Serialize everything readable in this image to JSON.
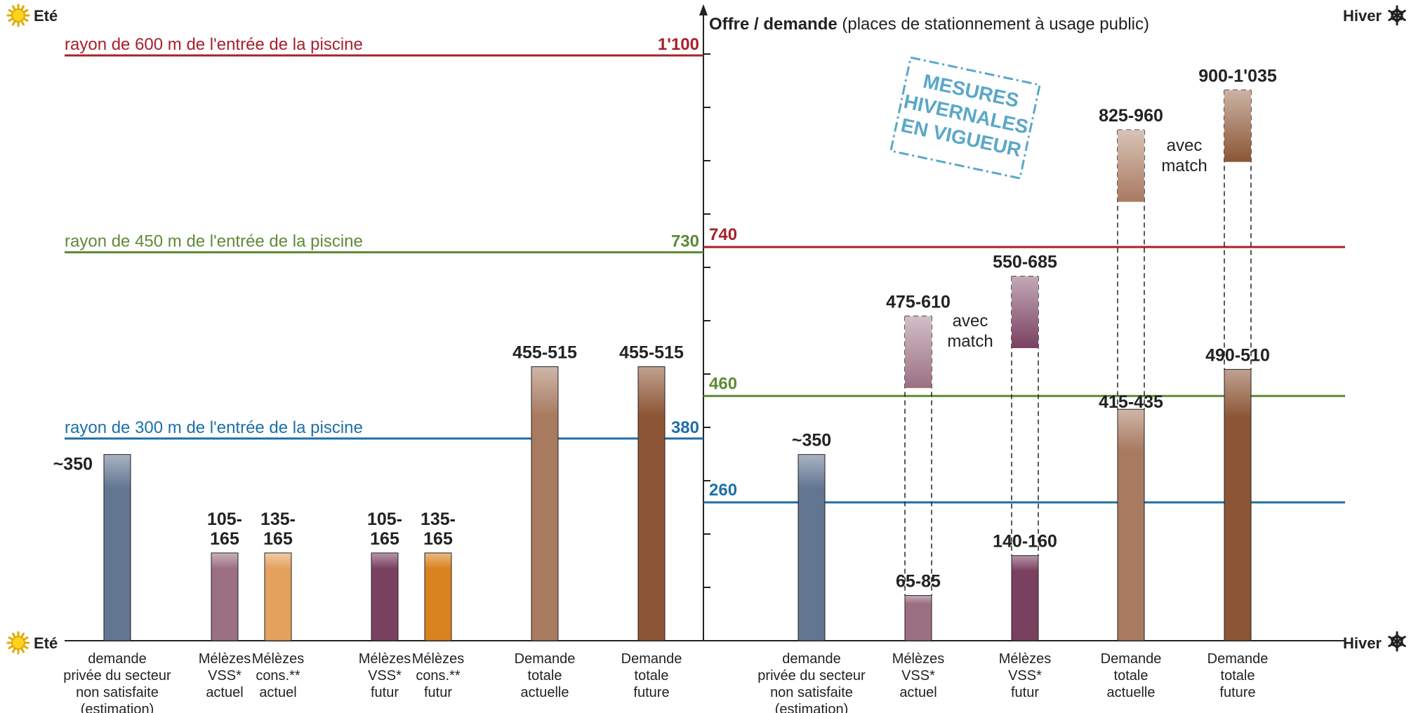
{
  "chart_data": {
    "type": "bar",
    "title_bold": "Offre / demande",
    "title_rest": "(places de stationnement à usage public)",
    "season_left": "Eté",
    "season_right": "Hiver",
    "stamp_lines": [
      "MESURES",
      "HIVERNALES",
      "EN VIGUEUR"
    ],
    "colors": {
      "red": "#a8202a",
      "green": "#5e8a36",
      "blue": "#1d6fa8",
      "demand_private": "#627591",
      "meleze_vss": "#9b7082",
      "meleze_cons": "#e4a05d",
      "meleze_vss_future": "#7a4060",
      "meleze_cons_future": "#d98220",
      "total_current": "#a87a60",
      "total_future": "#8c5535",
      "stamp": "#5aa8c8"
    },
    "thresholds_left": [
      {
        "label": "rayon de 600 m de l'entrée de la piscine",
        "value": "1'100",
        "v": 1100,
        "color": "red"
      },
      {
        "label": "rayon de 450 m de l'entrée de la piscine",
        "value": "730",
        "v": 730,
        "color": "green"
      },
      {
        "label": "rayon de 300 m de l'entrée de la piscine",
        "value": "380",
        "v": 380,
        "color": "blue"
      }
    ],
    "thresholds_right": [
      {
        "value": "740",
        "v": 740,
        "color": "red"
      },
      {
        "value": "460",
        "v": 460,
        "color": "green"
      },
      {
        "value": "260",
        "v": 260,
        "color": "blue"
      }
    ],
    "bars_left": [
      {
        "value_label": "~350",
        "v": 350,
        "color": "demand_private",
        "cat": [
          "demande",
          "privée du secteur",
          "non satisfaite",
          "(estimation)"
        ]
      },
      {
        "value_label": "105-\n165",
        "v": 165,
        "color": "meleze_vss",
        "cat": [
          "Mélèzes",
          "VSS*",
          "actuel"
        ]
      },
      {
        "value_label": "135-\n165",
        "v": 165,
        "color": "meleze_cons",
        "cat": [
          "Mélèzes",
          "cons.**",
          "actuel"
        ]
      },
      {
        "value_label": "105-\n165",
        "v": 165,
        "color": "meleze_vss_future",
        "cat": [
          "Mélèzes",
          "VSS*",
          "futur"
        ]
      },
      {
        "value_label": "135-\n165",
        "v": 165,
        "color": "meleze_cons_future",
        "cat": [
          "Mélèzes",
          "cons.**",
          "futur"
        ]
      },
      {
        "value_label": "455-515",
        "v": 515,
        "color": "total_current",
        "cat": [
          "Demande",
          "totale",
          "actuelle"
        ]
      },
      {
        "value_label": "455-515",
        "v": 515,
        "color": "total_future",
        "cat": [
          "Demande",
          "totale",
          "future"
        ]
      }
    ],
    "bars_right": [
      {
        "value_label": "~350",
        "v": 350,
        "color": "demand_private",
        "cat": [
          "demande",
          "privée du secteur",
          "non satisfaite",
          "(estimation)"
        ]
      },
      {
        "value_label": "65-85",
        "v": 85,
        "color": "meleze_vss",
        "cat": [
          "Mélèzes",
          "VSS*",
          "actuel"
        ],
        "match_label": "475-610",
        "match_lo": 475,
        "match_hi": 610
      },
      {
        "value_label": "140-160",
        "v": 160,
        "color": "meleze_vss_future",
        "cat": [
          "Mélèzes",
          "VSS*",
          "futur"
        ],
        "match_label": "550-685",
        "match_lo": 550,
        "match_hi": 685
      },
      {
        "value_label": "415-435",
        "v": 435,
        "color": "total_current",
        "cat": [
          "Demande",
          "totale",
          "actuelle"
        ],
        "match_label": "825-960",
        "match_lo": 825,
        "match_hi": 960
      },
      {
        "value_label": "490-510",
        "v": 510,
        "color": "total_future",
        "cat": [
          "Demande",
          "totale",
          "future"
        ],
        "match_label": "900-1'035",
        "match_lo": 900,
        "match_hi": 1035
      }
    ],
    "match_note": [
      "avec",
      "match"
    ]
  }
}
